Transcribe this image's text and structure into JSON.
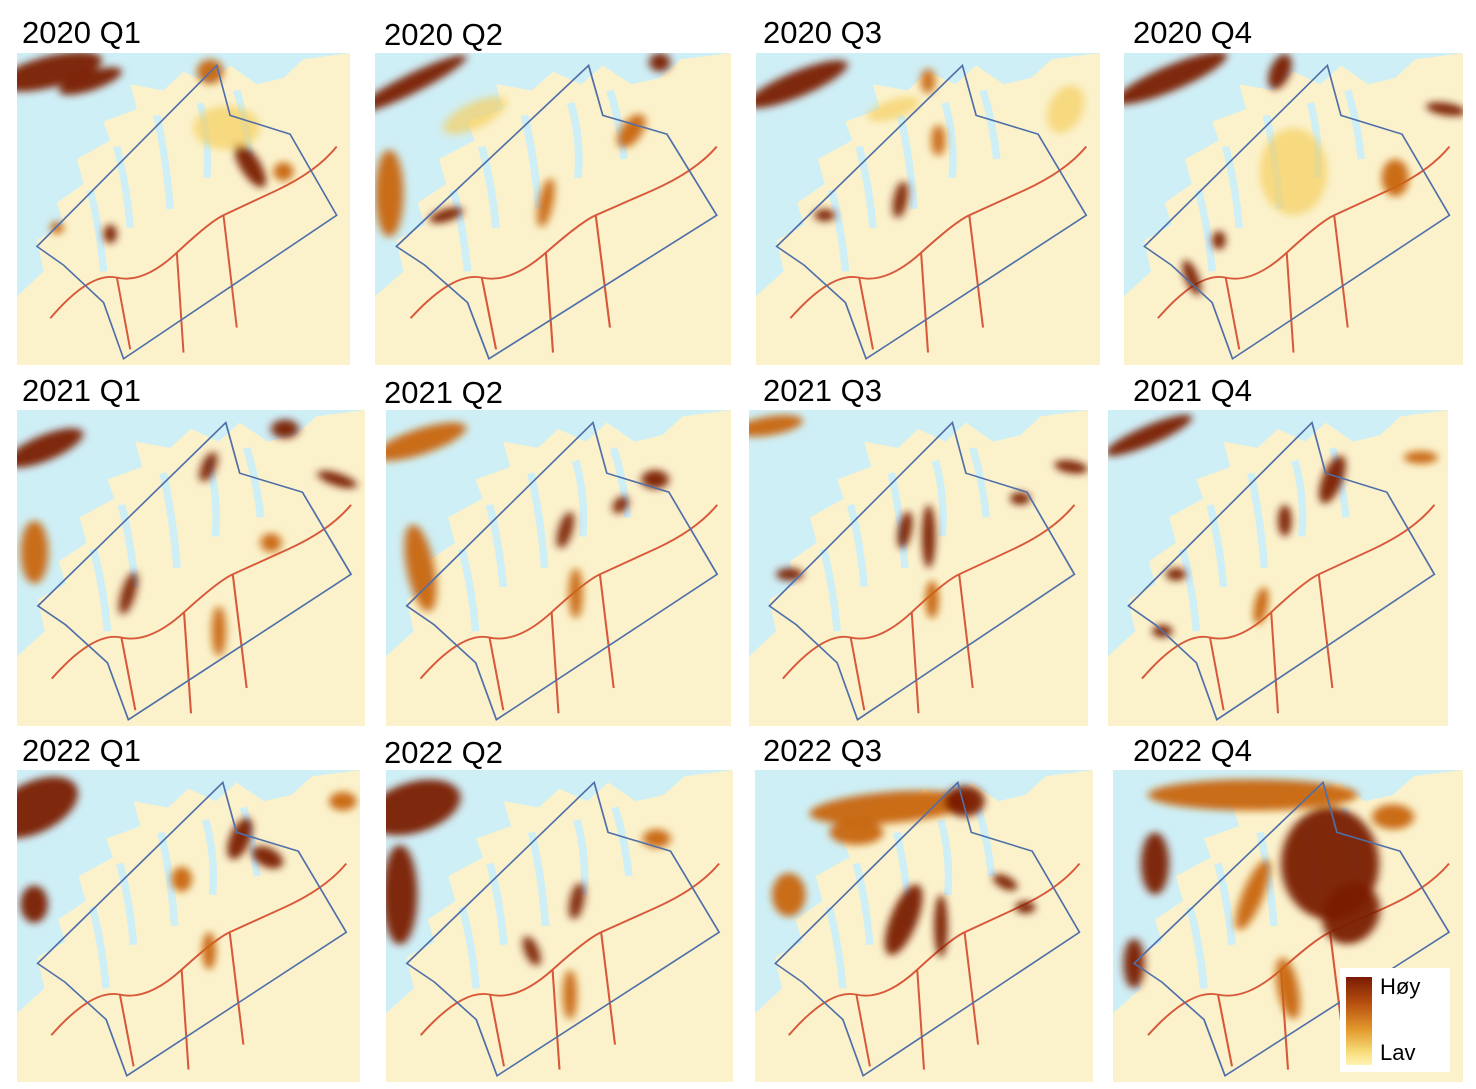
{
  "panels": [
    {
      "title": "2020 Q1"
    },
    {
      "title": "2020 Q2"
    },
    {
      "title": "2020 Q3"
    },
    {
      "title": "2020 Q4"
    },
    {
      "title": "2021 Q1"
    },
    {
      "title": "2021 Q2"
    },
    {
      "title": "2021 Q3"
    },
    {
      "title": "2021 Q4"
    },
    {
      "title": "2022 Q1"
    },
    {
      "title": "2022 Q2"
    },
    {
      "title": "2022 Q3"
    },
    {
      "title": "2022 Q4"
    }
  ],
  "legend": {
    "high": "Høy",
    "low": "Lav"
  },
  "colors": {
    "sea": "#cfeff6",
    "land": "#fbf2cc",
    "heat_low": "#f5cf60",
    "heat_mid": "#c8650f",
    "heat_high": "#7a1a05",
    "boundary": "#4f6fa8",
    "roads": "#d8593a"
  }
}
